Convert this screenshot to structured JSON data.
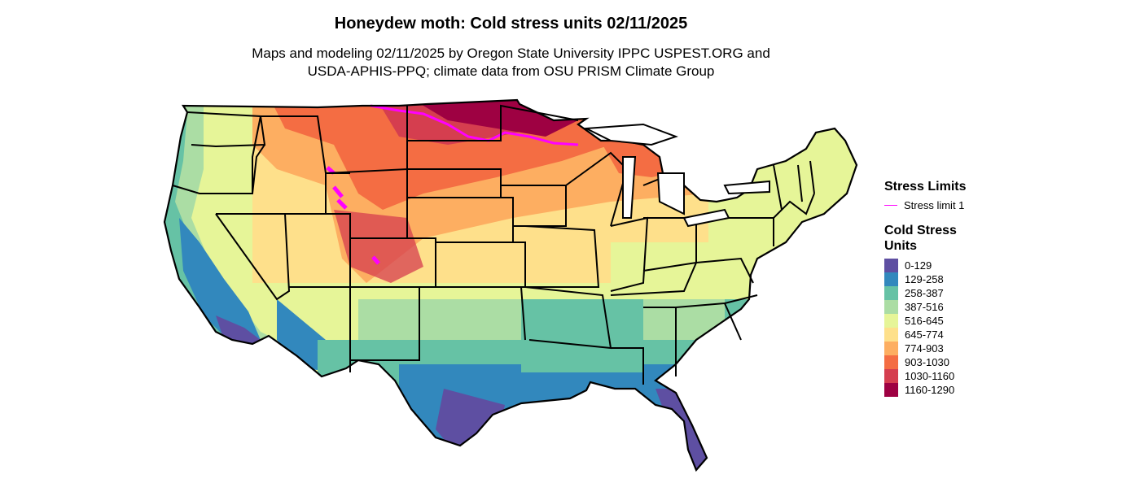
{
  "title": "Honeydew moth: Cold stress units 02/11/2025",
  "subtitle_lines": [
    "Maps and modeling 02/11/2025 by Oregon State University IPPC USPEST.ORG and",
    "USDA-APHIS-PPQ; climate data from OSU PRISM Climate Group"
  ],
  "legend": {
    "stress_title": "Stress Limits",
    "stress_item": "Stress limit 1",
    "stress_color": "#ff00ff",
    "units_title": "Cold Stress Units",
    "items": [
      {
        "label": "0-129",
        "color": "#5e4fa2"
      },
      {
        "label": "129-258",
        "color": "#3288bd"
      },
      {
        "label": "258-387",
        "color": "#66c2a5"
      },
      {
        "label": "387-516",
        "color": "#abdda4"
      },
      {
        "label": "516-645",
        "color": "#e6f598"
      },
      {
        "label": "645-774",
        "color": "#fee08b"
      },
      {
        "label": "774-903",
        "color": "#fdae61"
      },
      {
        "label": "903-1030",
        "color": "#f46d43"
      },
      {
        "label": "1030-1160",
        "color": "#d53e4f"
      },
      {
        "label": "1160-1290",
        "color": "#9e0142"
      }
    ]
  }
}
